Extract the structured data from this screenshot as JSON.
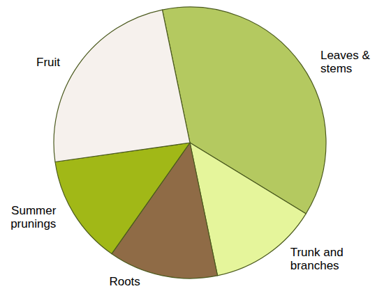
{
  "chart_data": {
    "type": "pie",
    "categories": [
      "Leaves &\nstems",
      "Trunk and\nbranches",
      "Roots",
      "Summer\nprunings",
      "Fruit"
    ],
    "values": [
      37,
      13,
      13,
      13,
      24
    ],
    "colors": [
      "#b4c960",
      "#e5f59b",
      "#8f6b46",
      "#a1b817",
      "#f6f1ed"
    ]
  }
}
